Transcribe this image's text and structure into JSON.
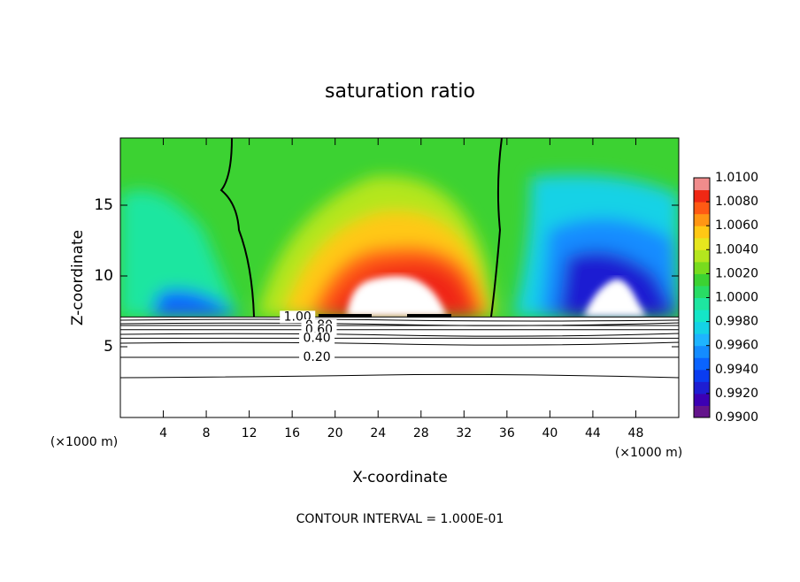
{
  "chart_data": {
    "type": "contour",
    "title": "saturation ratio",
    "x_label": "X-coordinate",
    "y_label": "Z-coordinate",
    "x_unit_label": "(×1000 m)",
    "x_unit_label_right": "(×1000 m)",
    "footnote": "CONTOUR INTERVAL = 1.000E-01",
    "xlim": [
      0,
      52
    ],
    "ylim": [
      0,
      19.75
    ],
    "xticks": [
      4,
      8,
      12,
      16,
      20,
      24,
      28,
      32,
      36,
      40,
      44,
      48
    ],
    "yticks": [
      5,
      10,
      15
    ],
    "contour_labels": [
      {
        "value": 1,
        "label": "1.00",
        "y": 7.1,
        "x": 16.5
      },
      {
        "value": 0.8,
        "label": "0.80",
        "y": 6.5,
        "x": 18.5
      },
      {
        "value": 0.6,
        "label": "0.60",
        "y": 6.2,
        "x": 18.5
      },
      {
        "value": 0.4,
        "label": "0.40",
        "y": 5.6,
        "x": 18.3
      },
      {
        "value": 0.2,
        "label": "0.20",
        "y": 4.25,
        "x": 18.3
      }
    ],
    "colorbar": {
      "lim": [
        0.99,
        1.01
      ],
      "ticks": [
        {
          "value": 1.01,
          "label": "1.0100"
        },
        {
          "value": 1.008,
          "label": "1.0080"
        },
        {
          "value": 1.006,
          "label": "1.0060"
        },
        {
          "value": 1.004,
          "label": "1.0040"
        },
        {
          "value": 1.002,
          "label": "1.0020"
        },
        {
          "value": 1,
          "label": "1.0000"
        },
        {
          "value": 0.998,
          "label": "0.9980"
        },
        {
          "value": 0.996,
          "label": "0.9960"
        },
        {
          "value": 0.994,
          "label": "0.9940"
        },
        {
          "value": 0.992,
          "label": "0.9920"
        },
        {
          "value": 0.99,
          "label": "0.9900"
        }
      ],
      "colors": [
        "#64148c",
        "#3c00b4",
        "#1e1ed2",
        "#0a3cf0",
        "#0a64ff",
        "#148cff",
        "#1eb4ff",
        "#14d2e6",
        "#14e6c8",
        "#1ee6a0",
        "#28dc64",
        "#3cd232",
        "#78dc1e",
        "#b4e61e",
        "#e6e61e",
        "#ffc814",
        "#ff9614",
        "#ff5a14",
        "#f02814",
        "#f08c8c"
      ]
    }
  }
}
